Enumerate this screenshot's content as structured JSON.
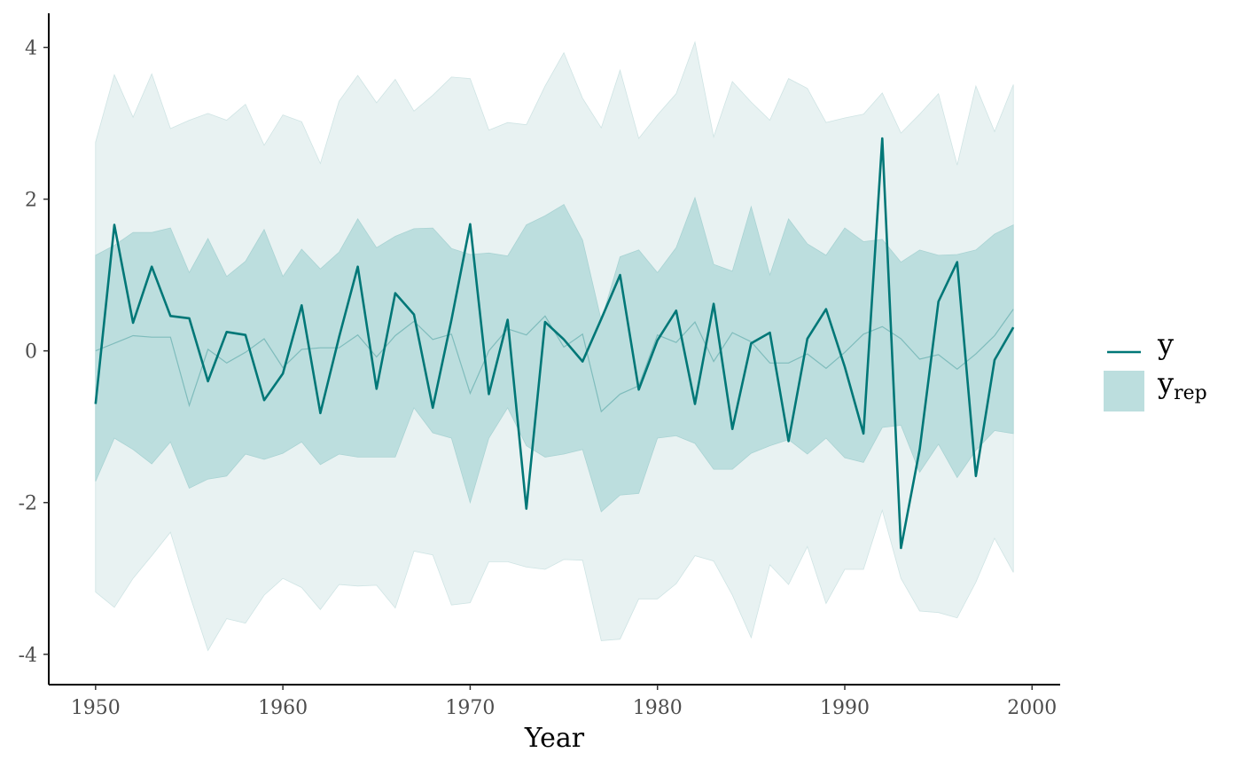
{
  "chart_data": {
    "type": "line",
    "title": "",
    "xlabel": "Year",
    "ylabel": "",
    "xlim": [
      1947.5,
      2001.5
    ],
    "ylim": [
      -4.4,
      4.45
    ],
    "x_ticks": [
      1950,
      1960,
      1970,
      1980,
      1990,
      2000
    ],
    "y_ticks": [
      4,
      2,
      0,
      -2,
      -4
    ],
    "grid": false,
    "legend_position": "right",
    "colors": {
      "line": "#007777",
      "band_inner": "#bcdede",
      "band_outer": "#e8f2f2",
      "median": "#7fbcbc",
      "axis": "#000000",
      "tick_text": "#4d4d4d"
    },
    "legend": {
      "y_label": "y",
      "yrep_base": "y",
      "yrep_sub": "rep"
    },
    "years": [
      1950,
      1951,
      1952,
      1953,
      1954,
      1955,
      1956,
      1957,
      1958,
      1959,
      1960,
      1961,
      1962,
      1963,
      1964,
      1965,
      1966,
      1967,
      1968,
      1969,
      1970,
      1971,
      1972,
      1973,
      1974,
      1975,
      1976,
      1977,
      1978,
      1979,
      1980,
      1981,
      1982,
      1983,
      1984,
      1985,
      1986,
      1987,
      1988,
      1989,
      1990,
      1991,
      1992,
      1993,
      1994,
      1995,
      1996,
      1997,
      1998,
      1999
    ],
    "series": [
      {
        "name": "y",
        "role": "observed",
        "values": [
          -0.7,
          1.66,
          0.37,
          1.11,
          0.46,
          0.43,
          -0.4,
          0.25,
          0.21,
          -0.65,
          -0.3,
          0.6,
          -0.82,
          0.18,
          1.11,
          -0.5,
          0.76,
          0.48,
          -0.75,
          0.41,
          1.67,
          -0.57,
          0.41,
          -2.08,
          0.38,
          0.15,
          -0.14,
          0.42,
          1.0,
          -0.51,
          0.14,
          0.53,
          -0.7,
          0.62,
          -1.03,
          0.1,
          0.24,
          -1.19,
          0.16,
          0.55,
          -0.21,
          -1.09,
          2.8,
          -2.6,
          -1.3,
          0.65,
          1.17,
          -1.65,
          -0.12,
          0.31
        ]
      },
      {
        "name": "y_rep",
        "role": "predictive",
        "median": [
          0.0,
          0.1,
          0.2,
          0.18,
          0.18,
          -0.72,
          0.02,
          -0.16,
          -0.02,
          0.16,
          -0.22,
          0.02,
          0.04,
          0.04,
          0.21,
          -0.08,
          0.2,
          0.39,
          0.15,
          0.22,
          -0.56,
          0.0,
          0.29,
          0.21,
          0.46,
          0.05,
          0.22,
          -0.8,
          -0.57,
          -0.46,
          0.21,
          0.11,
          0.38,
          -0.14,
          0.24,
          0.12,
          -0.16,
          -0.16,
          -0.04,
          -0.23,
          -0.02,
          0.22,
          0.32,
          0.16,
          -0.11,
          -0.05,
          -0.24,
          -0.04,
          0.2,
          0.55
        ],
        "inner_lower": [
          -1.72,
          -1.15,
          -1.3,
          -1.49,
          -1.2,
          -1.81,
          -1.69,
          -1.65,
          -1.36,
          -1.43,
          -1.35,
          -1.2,
          -1.5,
          -1.36,
          -1.4,
          -1.4,
          -1.4,
          -0.75,
          -1.08,
          -1.15,
          -2.0,
          -1.15,
          -0.75,
          -1.25,
          -1.4,
          -1.36,
          -1.3,
          -2.12,
          -1.9,
          -1.88,
          -1.15,
          -1.12,
          -1.22,
          -1.56,
          -1.56,
          -1.35,
          -1.25,
          -1.17,
          -1.36,
          -1.15,
          -1.41,
          -1.47,
          -1.01,
          -0.98,
          -1.6,
          -1.23,
          -1.67,
          -1.31,
          -1.05,
          -1.09
        ],
        "inner_upper": [
          1.26,
          1.39,
          1.56,
          1.56,
          1.62,
          1.03,
          1.48,
          0.98,
          1.18,
          1.6,
          0.98,
          1.34,
          1.08,
          1.3,
          1.74,
          1.36,
          1.51,
          1.61,
          1.62,
          1.35,
          1.27,
          1.29,
          1.25,
          1.66,
          1.78,
          1.93,
          1.46,
          0.4,
          1.24,
          1.33,
          1.03,
          1.36,
          2.02,
          1.14,
          1.05,
          1.9,
          1.0,
          1.74,
          1.41,
          1.26,
          1.62,
          1.44,
          1.47,
          1.17,
          1.33,
          1.26,
          1.27,
          1.33,
          1.54,
          1.66
        ],
        "outer_lower": [
          -3.18,
          -3.38,
          -3.0,
          -2.7,
          -2.39,
          -3.2,
          -3.95,
          -3.53,
          -3.59,
          -3.22,
          -3.0,
          -3.12,
          -3.41,
          -3.08,
          -3.1,
          -3.09,
          -3.39,
          -2.64,
          -2.69,
          -3.35,
          -3.32,
          -2.78,
          -2.78,
          -2.85,
          -2.88,
          -2.75,
          -2.76,
          -3.82,
          -3.8,
          -3.27,
          -3.27,
          -3.07,
          -2.7,
          -2.77,
          -3.22,
          -3.78,
          -2.82,
          -3.08,
          -2.58,
          -3.33,
          -2.88,
          -2.88,
          -2.1,
          -3.0,
          -3.43,
          -3.45,
          -3.52,
          -3.05,
          -2.47,
          -2.92
        ],
        "outer_upper": [
          2.75,
          3.64,
          3.08,
          3.65,
          2.93,
          3.04,
          3.13,
          3.04,
          3.25,
          2.71,
          3.11,
          3.02,
          2.47,
          3.29,
          3.63,
          3.27,
          3.58,
          3.16,
          3.37,
          3.61,
          3.59,
          2.91,
          3.01,
          2.98,
          3.49,
          3.93,
          3.33,
          2.94,
          3.7,
          2.8,
          3.11,
          3.39,
          4.07,
          2.82,
          3.55,
          3.28,
          3.04,
          3.59,
          3.46,
          3.01,
          3.07,
          3.12,
          3.4,
          2.87,
          3.12,
          3.39,
          2.45,
          3.49,
          2.89,
          3.51
        ]
      }
    ]
  }
}
